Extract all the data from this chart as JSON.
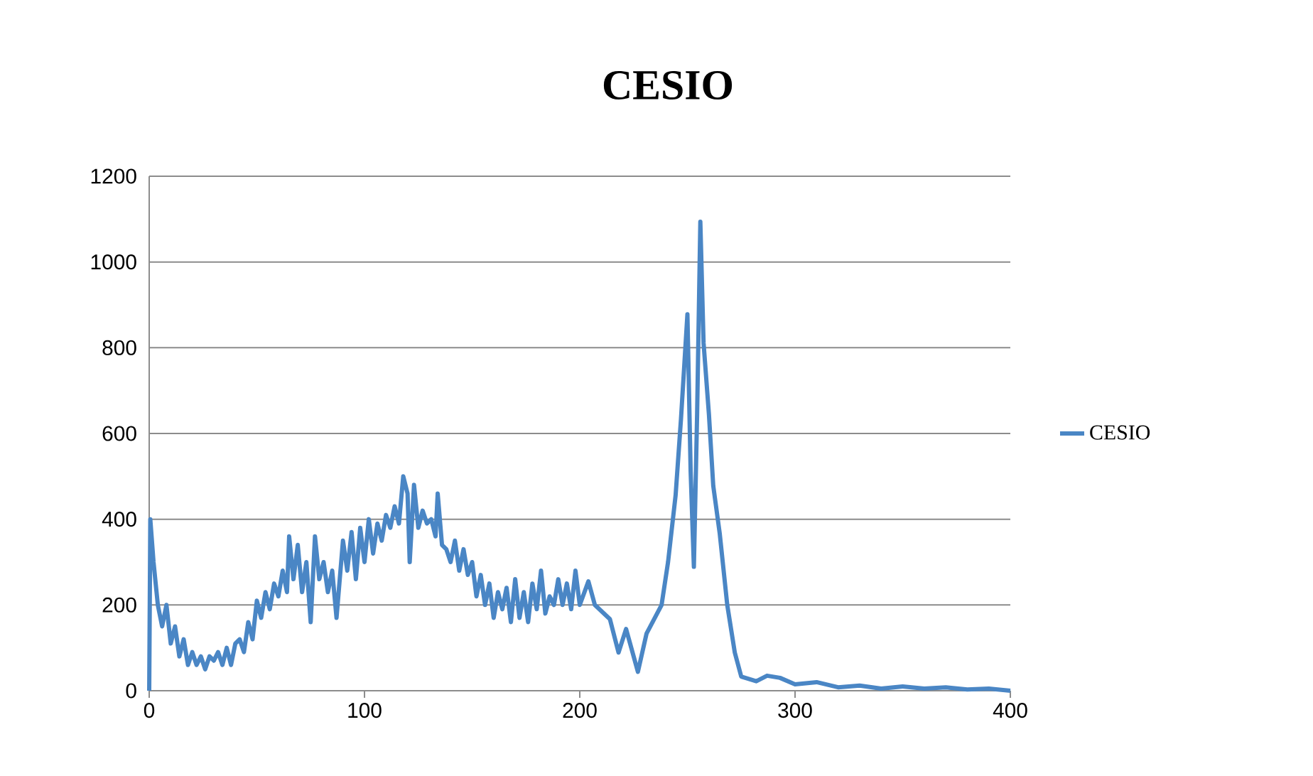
{
  "chart_data": {
    "type": "line",
    "title": "CESIO",
    "x": [
      0,
      0.5,
      2,
      4,
      6,
      8,
      10,
      12,
      14,
      16,
      18,
      20,
      22,
      24,
      26,
      28,
      30,
      32,
      34,
      36,
      38,
      40,
      42,
      44,
      46,
      48,
      50,
      52,
      54,
      56,
      58,
      60,
      62,
      64,
      65,
      67,
      69,
      71,
      73,
      75,
      77,
      79,
      81,
      83,
      85,
      87,
      90,
      92,
      94,
      96,
      98,
      100,
      102,
      104,
      106,
      108,
      110,
      112,
      114,
      116,
      118,
      120,
      121,
      123,
      125,
      127,
      129,
      131,
      133,
      134,
      136,
      138,
      140,
      142,
      144,
      146,
      148,
      150,
      152,
      154,
      156,
      158,
      160,
      162,
      164,
      166,
      168,
      170,
      172,
      174,
      176,
      178,
      180,
      182,
      184,
      186,
      188,
      190,
      192,
      194,
      196,
      198,
      200,
      204,
      207,
      214,
      218,
      221.5,
      227,
      231,
      238,
      241,
      244.5,
      247,
      250,
      251.5,
      253,
      254.5,
      256,
      257.5,
      260,
      262,
      265,
      268.5,
      272,
      275,
      282,
      287,
      293,
      300,
      310,
      320,
      330,
      340,
      350,
      360,
      370,
      380,
      390,
      400
    ],
    "series": [
      {
        "name": "CESIO",
        "color": "#4a86c5",
        "values": [
          0,
          400,
          300,
          200,
          150,
          200,
          110,
          150,
          80,
          120,
          60,
          90,
          60,
          80,
          50,
          80,
          70,
          90,
          60,
          100,
          60,
          110,
          120,
          90,
          160,
          120,
          210,
          170,
          230,
          190,
          250,
          220,
          280,
          230,
          360,
          260,
          340,
          230,
          300,
          160,
          360,
          260,
          300,
          230,
          280,
          170,
          350,
          280,
          370,
          260,
          380,
          300,
          400,
          320,
          390,
          350,
          410,
          380,
          430,
          390,
          500,
          460,
          300,
          480,
          380,
          420,
          390,
          400,
          360,
          460,
          340,
          330,
          300,
          350,
          280,
          330,
          270,
          300,
          220,
          270,
          200,
          250,
          170,
          230,
          190,
          240,
          160,
          260,
          170,
          230,
          160,
          250,
          190,
          280,
          180,
          220,
          200,
          260,
          200,
          250,
          190,
          280,
          200,
          255,
          200,
          167,
          89,
          144,
          44,
          133,
          200,
          300,
          455,
          633,
          878,
          511,
          289,
          644,
          1094,
          811,
          644,
          478,
          367,
          200,
          89,
          33,
          22,
          35,
          30,
          15,
          20,
          8,
          12,
          5,
          10,
          5,
          8,
          3,
          5,
          0
        ]
      }
    ],
    "xlim": [
      0,
      400
    ],
    "ylim": [
      0,
      1200
    ],
    "xticks": [
      0,
      100,
      200,
      300,
      400
    ],
    "yticks": [
      0,
      200,
      400,
      600,
      800,
      1000,
      1200
    ],
    "grid": "y",
    "legend": "right",
    "marker": "none",
    "line_style": "solid"
  }
}
